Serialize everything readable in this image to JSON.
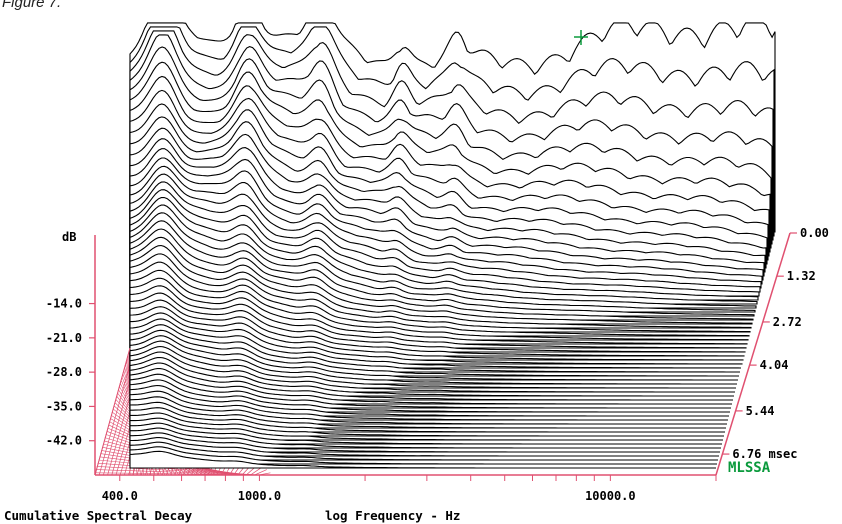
{
  "figure_label": "Figure 7.",
  "chart_data": {
    "type": "waterfall",
    "title": "Cumulative Spectral Decay",
    "xlabel": "log Frequency - Hz",
    "ylabel": "dB",
    "brand": "MLSSA",
    "x_scale": "log",
    "x_ticks": [
      {
        "value": 400,
        "label": "400.0"
      },
      {
        "value": 1000,
        "label": "1000.0"
      },
      {
        "value": 10000,
        "label": "10000.0"
      }
    ],
    "y_ticks": [
      {
        "value": -14,
        "label": "-14.0"
      },
      {
        "value": -21,
        "label": "-21.0"
      },
      {
        "value": -28,
        "label": "-28.0"
      },
      {
        "value": -35,
        "label": "-35.0"
      },
      {
        "value": -42,
        "label": "-42.0"
      }
    ],
    "t_ticks": [
      {
        "value": 0.0,
        "label": "0.00"
      },
      {
        "value": 1.32,
        "label": "1.32"
      },
      {
        "value": 2.72,
        "label": "2.72"
      },
      {
        "value": 4.04,
        "label": "4.04"
      },
      {
        "value": 5.44,
        "label": "5.44"
      },
      {
        "value": 6.76,
        "label": "6.76 msec"
      }
    ],
    "x_range_hz": [
      340,
      20000
    ],
    "y_range_db": [
      -49,
      0
    ],
    "time_range_ms": [
      0,
      7.4
    ],
    "slice_count": 60,
    "grid": false,
    "legend": "none"
  }
}
